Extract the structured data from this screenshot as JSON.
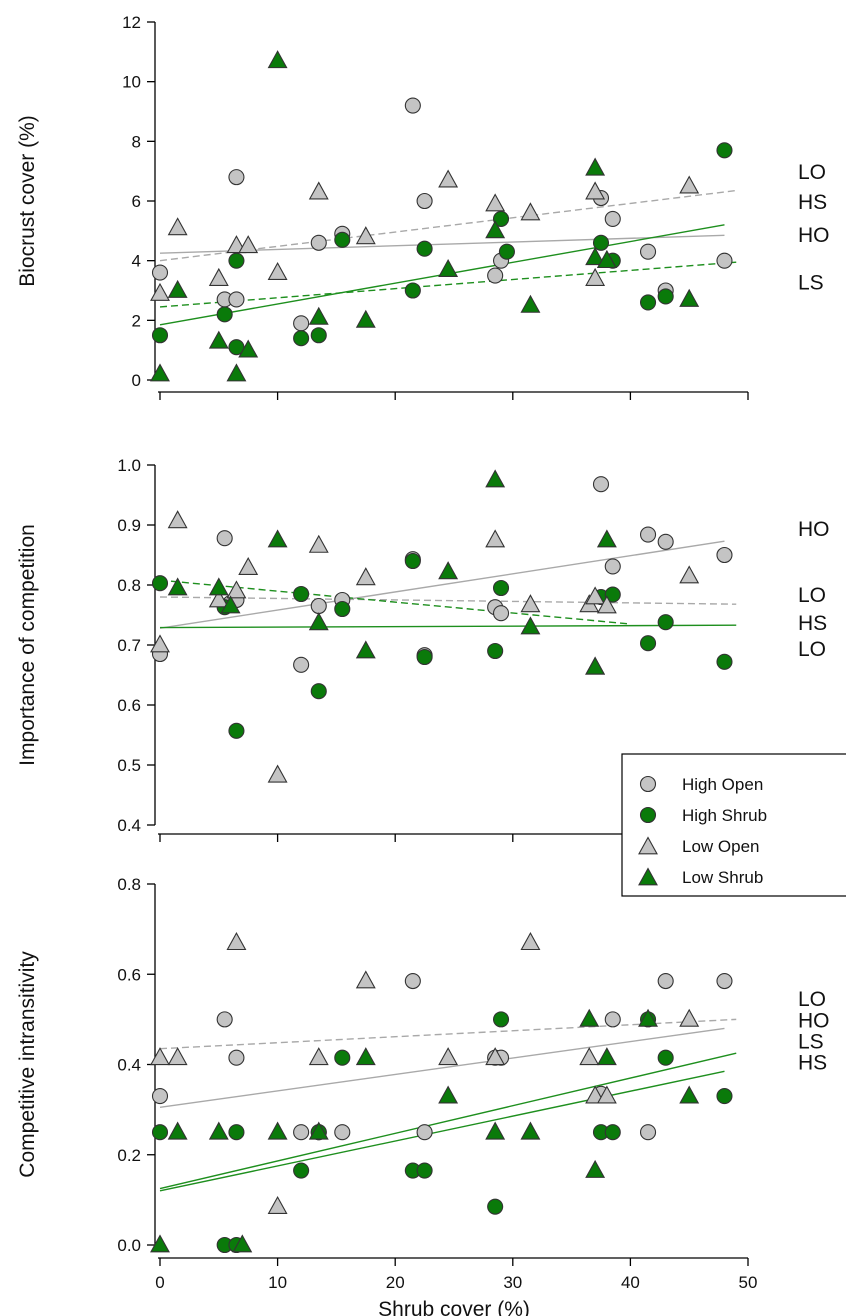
{
  "colors": {
    "high_open": "#c4c4c4",
    "high_shrub": "#0a7a0a",
    "low_open": "#c4c4c4",
    "low_shrub": "#0a7a0a",
    "open_line": "#a9a9a9",
    "shrub_line": "#1e8f1e",
    "marker_edge": "#333333"
  },
  "legend": {
    "placement": "right of middle panel",
    "items": [
      {
        "key": "high_open",
        "label": "High Open",
        "marker": "circle"
      },
      {
        "key": "high_shrub",
        "label": "High Shrub",
        "marker": "circle"
      },
      {
        "key": "low_open",
        "label": "Low Open",
        "marker": "triangle"
      },
      {
        "key": "low_shrub",
        "label": "Low Shrub",
        "marker": "triangle"
      }
    ]
  },
  "chart_data": [
    {
      "type": "scatter",
      "ylabel": "Biocrust cover (%)",
      "xlabel": "",
      "xlim": [
        -1,
        50
      ],
      "ylim": [
        0,
        12
      ],
      "yticks": [
        0,
        2,
        4,
        6,
        8,
        10,
        12
      ],
      "yticklabels": [
        "0",
        "2",
        "4",
        "6",
        "8",
        "10",
        "12"
      ],
      "xticks": [
        0,
        10,
        20,
        30,
        40,
        50
      ],
      "show_xticklabels": false,
      "series": [
        {
          "key": "high_open",
          "points": [
            [
              0,
              3.6
            ],
            [
              5.5,
              2.7
            ],
            [
              6.5,
              6.8
            ],
            [
              6.5,
              2.7
            ],
            [
              12,
              1.9
            ],
            [
              13.5,
              4.6
            ],
            [
              15.5,
              4.9
            ],
            [
              21.5,
              9.2
            ],
            [
              22.5,
              6.0
            ],
            [
              28.5,
              3.5
            ],
            [
              29,
              4.0
            ],
            [
              37.5,
              6.1
            ],
            [
              38.5,
              5.4
            ],
            [
              41.5,
              4.3
            ],
            [
              43,
              3.0
            ],
            [
              48,
              4.0
            ]
          ]
        },
        {
          "key": "high_shrub",
          "points": [
            [
              0,
              1.5
            ],
            [
              5.5,
              2.2
            ],
            [
              6.5,
              4.0
            ],
            [
              6.5,
              1.1
            ],
            [
              12,
              1.4
            ],
            [
              13.5,
              1.5
            ],
            [
              15.5,
              4.7
            ],
            [
              21.5,
              3.0
            ],
            [
              22.5,
              4.4
            ],
            [
              29,
              5.4
            ],
            [
              29.5,
              4.3
            ],
            [
              37.5,
              4.6
            ],
            [
              38.5,
              4.0
            ],
            [
              41.5,
              2.6
            ],
            [
              43,
              2.8
            ],
            [
              48,
              7.7
            ]
          ]
        },
        {
          "key": "low_open",
          "points": [
            [
              0,
              2.9
            ],
            [
              1.5,
              5.1
            ],
            [
              5,
              3.4
            ],
            [
              6.5,
              4.5
            ],
            [
              7.5,
              4.5
            ],
            [
              10,
              3.6
            ],
            [
              13.5,
              6.3
            ],
            [
              17.5,
              4.8
            ],
            [
              24.5,
              6.7
            ],
            [
              28.5,
              5.9
            ],
            [
              31.5,
              5.6
            ],
            [
              37,
              6.3
            ],
            [
              37,
              3.4
            ],
            [
              38,
              4.0
            ],
            [
              45,
              6.5
            ]
          ]
        },
        {
          "key": "low_shrub",
          "points": [
            [
              0,
              0.2
            ],
            [
              1.5,
              3.0
            ],
            [
              5,
              1.3
            ],
            [
              6.5,
              0.2
            ],
            [
              7.5,
              1.0
            ],
            [
              10,
              10.7
            ],
            [
              13.5,
              2.1
            ],
            [
              17.5,
              2.0
            ],
            [
              24.5,
              3.7
            ],
            [
              28.5,
              5.0
            ],
            [
              31.5,
              2.5
            ],
            [
              37,
              4.1
            ],
            [
              37,
              7.1
            ],
            [
              38,
              4.0
            ],
            [
              45,
              2.7
            ]
          ]
        }
      ],
      "fits": [
        {
          "key": "high_open",
          "dashed": false,
          "color": "open_line",
          "line": [
            [
              0,
              4.25
            ],
            [
              48,
              4.85
            ]
          ]
        },
        {
          "key": "low_open",
          "dashed": true,
          "color": "open_line",
          "line": [
            [
              0,
              4.0
            ],
            [
              49,
              6.35
            ]
          ]
        },
        {
          "key": "high_shrub",
          "dashed": false,
          "color": "shrub_line",
          "line": [
            [
              0,
              1.85
            ],
            [
              48,
              5.2
            ]
          ]
        },
        {
          "key": "low_shrub",
          "dashed": true,
          "color": "shrub_line",
          "line": [
            [
              0,
              2.45
            ],
            [
              49,
              3.95
            ]
          ]
        }
      ],
      "fit_labels": [
        {
          "text": "LO",
          "y": 7.0
        },
        {
          "text": "HS",
          "y": 6.0
        },
        {
          "text": "HO",
          "y": 4.9
        },
        {
          "text": "LS",
          "y": 3.3
        }
      ]
    },
    {
      "type": "scatter",
      "ylabel": "Importance of competition",
      "xlabel": "",
      "xlim": [
        -1,
        50
      ],
      "ylim": [
        0.4,
        1.0
      ],
      "yticks": [
        0.4,
        0.5,
        0.6,
        0.7,
        0.8,
        0.9,
        1.0
      ],
      "yticklabels": [
        "0.4",
        "0.5",
        "0.6",
        "0.7",
        "0.8",
        "0.9",
        "1.0"
      ],
      "xticks": [
        0,
        10,
        20,
        30,
        40,
        50
      ],
      "show_xticklabels": false,
      "series": [
        {
          "key": "high_open",
          "points": [
            [
              0,
              0.685
            ],
            [
              5.5,
              0.878
            ],
            [
              6,
              0.77
            ],
            [
              6.5,
              0.775
            ],
            [
              12,
              0.667
            ],
            [
              13.5,
              0.765
            ],
            [
              15.5,
              0.775
            ],
            [
              21.5,
              0.843
            ],
            [
              22.5,
              0.683
            ],
            [
              28.5,
              0.763
            ],
            [
              29,
              0.753
            ],
            [
              37.5,
              0.968
            ],
            [
              38.5,
              0.831
            ],
            [
              41.5,
              0.884
            ],
            [
              43,
              0.872
            ],
            [
              48,
              0.85
            ]
          ]
        },
        {
          "key": "high_shrub",
          "points": [
            [
              0,
              0.803
            ],
            [
              5.5,
              0.763
            ],
            [
              6.5,
              0.557
            ],
            [
              12,
              0.785
            ],
            [
              13.5,
              0.623
            ],
            [
              15.5,
              0.76
            ],
            [
              21.5,
              0.84
            ],
            [
              22.5,
              0.68
            ],
            [
              28.5,
              0.69
            ],
            [
              29,
              0.795
            ],
            [
              37.5,
              0.78
            ],
            [
              38.5,
              0.784
            ],
            [
              41.5,
              0.703
            ],
            [
              43,
              0.738
            ],
            [
              48,
              0.672
            ]
          ]
        },
        {
          "key": "low_open",
          "points": [
            [
              0,
              0.7
            ],
            [
              1.5,
              0.907
            ],
            [
              5,
              0.775
            ],
            [
              6.5,
              0.79
            ],
            [
              7.5,
              0.829
            ],
            [
              10,
              0.483
            ],
            [
              13.5,
              0.866
            ],
            [
              17.5,
              0.812
            ],
            [
              28.5,
              0.875
            ],
            [
              31.5,
              0.767
            ],
            [
              36.5,
              0.767
            ],
            [
              37,
              0.78
            ],
            [
              38,
              0.765
            ],
            [
              45,
              0.815
            ]
          ]
        },
        {
          "key": "low_shrub",
          "points": [
            [
              1.5,
              0.795
            ],
            [
              5,
              0.795
            ],
            [
              10,
              0.875
            ],
            [
              13.5,
              0.737
            ],
            [
              17.5,
              0.69
            ],
            [
              24.5,
              0.822
            ],
            [
              28.5,
              0.975
            ],
            [
              31.5,
              0.73
            ],
            [
              37,
              0.663
            ],
            [
              37,
              0.663
            ],
            [
              38,
              0.875
            ],
            [
              6,
              0.765
            ]
          ]
        }
      ],
      "fits": [
        {
          "key": "high_open",
          "dashed": false,
          "color": "open_line",
          "line": [
            [
              0,
              0.728
            ],
            [
              48,
              0.873
            ]
          ]
        },
        {
          "key": "low_open",
          "dashed": true,
          "color": "open_line",
          "line": [
            [
              0,
              0.78
            ],
            [
              49,
              0.768
            ]
          ]
        },
        {
          "key": "low_shrub",
          "dashed": true,
          "color": "shrub_line",
          "line": [
            [
              0,
              0.808
            ],
            [
              40,
              0.735
            ]
          ]
        },
        {
          "key": "high_shrub",
          "dashed": false,
          "color": "shrub_line",
          "line": [
            [
              0,
              0.729
            ],
            [
              49,
              0.733
            ]
          ]
        }
      ],
      "fit_labels": [
        {
          "text": "HO",
          "y": 0.895
        },
        {
          "text": "LO",
          "y": 0.785
        },
        {
          "text": "HS",
          "y": 0.738
        },
        {
          "text": "LO",
          "y": 0.695
        }
      ]
    },
    {
      "type": "scatter",
      "ylabel": "Competitive intransitivity",
      "xlabel": "Shrub cover (%)",
      "xlim": [
        -1,
        50
      ],
      "ylim": [
        0.0,
        0.8
      ],
      "yticks": [
        0.0,
        0.2,
        0.4,
        0.6,
        0.8
      ],
      "yticklabels": [
        "0.0",
        "0.2",
        "0.4",
        "0.6",
        "0.8"
      ],
      "xticks": [
        0,
        10,
        20,
        30,
        40,
        50
      ],
      "xticklabels": [
        "0",
        "10",
        "20",
        "30",
        "40",
        "50"
      ],
      "show_xticklabels": true,
      "series": [
        {
          "key": "high_open",
          "points": [
            [
              0,
              0.33
            ],
            [
              5.5,
              0.5
            ],
            [
              6.5,
              0.415
            ],
            [
              12,
              0.25
            ],
            [
              13.5,
              0.25
            ],
            [
              15.5,
              0.25
            ],
            [
              21.5,
              0.585
            ],
            [
              22.5,
              0.25
            ],
            [
              28.5,
              0.415
            ],
            [
              29,
              0.415
            ],
            [
              37.5,
              0.335
            ],
            [
              38.5,
              0.5
            ],
            [
              41.5,
              0.25
            ],
            [
              43,
              0.585
            ],
            [
              48,
              0.585
            ]
          ]
        },
        {
          "key": "high_shrub",
          "points": [
            [
              0,
              0.25
            ],
            [
              5.5,
              0.0
            ],
            [
              6.5,
              0.0
            ],
            [
              6.5,
              0.25
            ],
            [
              12,
              0.165
            ],
            [
              13.5,
              0.25
            ],
            [
              15.5,
              0.415
            ],
            [
              21.5,
              0.165
            ],
            [
              22.5,
              0.165
            ],
            [
              28.5,
              0.085
            ],
            [
              29,
              0.5
            ],
            [
              37.5,
              0.25
            ],
            [
              38.5,
              0.25
            ],
            [
              41.5,
              0.5
            ],
            [
              43,
              0.415
            ],
            [
              48,
              0.33
            ]
          ]
        },
        {
          "key": "low_open",
          "points": [
            [
              0,
              0.415
            ],
            [
              1.5,
              0.415
            ],
            [
              6.5,
              0.67
            ],
            [
              10,
              0.085
            ],
            [
              13.5,
              0.415
            ],
            [
              17.5,
              0.585
            ],
            [
              24.5,
              0.415
            ],
            [
              28.5,
              0.415
            ],
            [
              31.5,
              0.67
            ],
            [
              36.5,
              0.415
            ],
            [
              37,
              0.33
            ],
            [
              38,
              0.33
            ],
            [
              45,
              0.5
            ]
          ]
        },
        {
          "key": "low_shrub",
          "points": [
            [
              0,
              0.0
            ],
            [
              1.5,
              0.25
            ],
            [
              5,
              0.25
            ],
            [
              7,
              0.0
            ],
            [
              10,
              0.25
            ],
            [
              13.5,
              0.25
            ],
            [
              17.5,
              0.415
            ],
            [
              24.5,
              0.33
            ],
            [
              28.5,
              0.25
            ],
            [
              31.5,
              0.25
            ],
            [
              36.5,
              0.5
            ],
            [
              37,
              0.165
            ],
            [
              38,
              0.415
            ],
            [
              41.5,
              0.5
            ],
            [
              45,
              0.33
            ]
          ]
        }
      ],
      "fits": [
        {
          "key": "low_open",
          "dashed": true,
          "color": "open_line",
          "line": [
            [
              0,
              0.435
            ],
            [
              49,
              0.5
            ]
          ]
        },
        {
          "key": "high_open",
          "dashed": false,
          "color": "open_line",
          "line": [
            [
              0,
              0.305
            ],
            [
              48,
              0.48
            ]
          ]
        },
        {
          "key": "low_shrub",
          "dashed": false,
          "color": "shrub_line",
          "line": [
            [
              0,
              0.125
            ],
            [
              49,
              0.425
            ]
          ]
        },
        {
          "key": "high_shrub",
          "dashed": false,
          "color": "shrub_line",
          "line": [
            [
              0,
              0.12
            ],
            [
              48,
              0.385
            ]
          ]
        }
      ],
      "fit_labels": [
        {
          "text": "LO",
          "y": 0.547
        },
        {
          "text": "HO",
          "y": 0.5
        },
        {
          "text": "LS",
          "y": 0.453
        },
        {
          "text": "HS",
          "y": 0.407
        }
      ]
    }
  ]
}
